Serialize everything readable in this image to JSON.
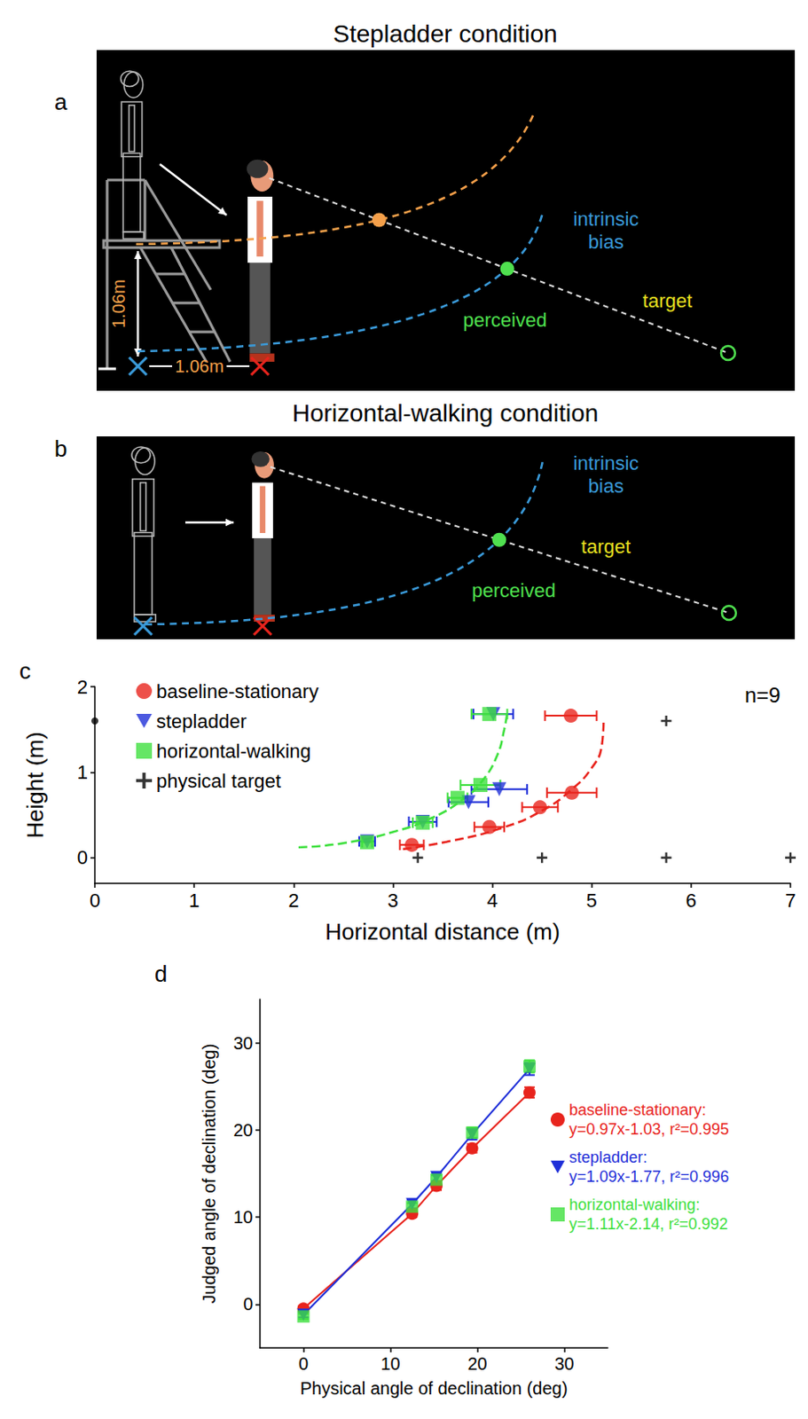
{
  "diagrams": {
    "a": {
      "letter": "a",
      "title": "Stepladder condition",
      "height_label": "1.06m",
      "distance_label": "1.06m",
      "curve_label": "intrinsic bias",
      "perceived_label": "perceived",
      "target_label": "target"
    },
    "b": {
      "letter": "b",
      "title": "Horizontal-walking condition",
      "curve_label": "intrinsic bias",
      "perceived_label": "perceived",
      "target_label": "target"
    }
  },
  "chart_data": [
    {
      "letter": "c",
      "type": "scatter",
      "x_label": "Horizontal distance (m)",
      "y_label": "Height (m)",
      "xlim": [
        0,
        7
      ],
      "xticks": [
        0,
        1,
        2,
        3,
        4,
        5,
        6,
        7
      ],
      "ylim": [
        -0.3,
        2
      ],
      "yticks": [
        0,
        1,
        2
      ],
      "grid": false,
      "legend": "upper left",
      "annotation": "n=9",
      "series": [
        {
          "name": "baseline-stationary",
          "color": "#e8241d",
          "marker": "circle",
          "x": [
            3.19,
            3.97,
            4.48,
            4.8,
            4.79
          ],
          "values": [
            0.15,
            0.36,
            0.59,
            0.76,
            1.66
          ],
          "x_err": [
            0.12,
            0.15,
            0.18,
            0.25,
            0.26
          ]
        },
        {
          "name": "stepladder",
          "color": "#1f2fd8",
          "marker": "triangle_down",
          "x": [
            2.74,
            3.3,
            3.76,
            4.07,
            4.01
          ],
          "values": [
            0.19,
            0.42,
            0.65,
            0.8,
            1.68
          ],
          "x_err": [
            0.08,
            0.14,
            0.2,
            0.28,
            0.2
          ]
        },
        {
          "name": "horizontal-walking",
          "color": "#3ee03e",
          "marker": "square",
          "x": [
            2.74,
            3.3,
            3.65,
            3.88,
            3.97
          ],
          "values": [
            0.18,
            0.41,
            0.7,
            0.85,
            1.68
          ],
          "x_err": [
            0.05,
            0.1,
            0.1,
            0.2,
            0.18
          ]
        },
        {
          "name": "physical target",
          "color": "#000000",
          "marker": "plus",
          "x": [
            3.25,
            4.5,
            5.75,
            7,
            5.75
          ],
          "values": [
            0,
            0,
            0,
            0,
            1.6
          ]
        }
      ],
      "eye": {
        "x": 0,
        "y": 1.6,
        "color": "#000000"
      },
      "curves": [
        {
          "color": "#e8241d",
          "line_style": "dashed",
          "x": [
            3.1,
            3.6,
            4.1,
            4.5,
            4.8,
            5.0,
            5.1,
            5.12
          ],
          "values": [
            0.1,
            0.2,
            0.35,
            0.55,
            0.8,
            1.05,
            1.3,
            1.6
          ]
        },
        {
          "color": "#3ee03e",
          "line_style": "dashed",
          "x": [
            2.05,
            2.5,
            3.0,
            3.4,
            3.7,
            3.9,
            4.05,
            4.12,
            4.15
          ],
          "values": [
            0.12,
            0.17,
            0.3,
            0.47,
            0.68,
            0.9,
            1.2,
            1.5,
            1.7
          ]
        }
      ]
    },
    {
      "letter": "d",
      "type": "line",
      "x_label": "Physical angle of declination (deg)",
      "y_label": "Judged angle of declination (deg)",
      "xlim": [
        -5,
        35
      ],
      "xticks": [
        0,
        10,
        20,
        30
      ],
      "ylim": [
        -5,
        35
      ],
      "yticks": [
        0,
        10,
        20,
        30
      ],
      "grid": false,
      "legend": "right",
      "series": [
        {
          "name": "baseline-stationary:",
          "fit": "y=0.97x-1.03, r²=0.995",
          "type": "line",
          "line_style": "solid",
          "color": "#e8241d",
          "marker": "circle",
          "x": [
            0,
            12.5,
            15.3,
            19.4,
            26.0
          ],
          "values": [
            -0.5,
            10.4,
            13.6,
            17.9,
            24.3
          ],
          "y_err": [
            0.3,
            0.4,
            0.5,
            0.5,
            0.6
          ]
        },
        {
          "name": "stepladder:",
          "fit": "y=1.09x-1.77, r²=0.996",
          "type": "line",
          "line_style": "solid",
          "color": "#1f2fd8",
          "marker": "triangle_down",
          "x": [
            0,
            12.5,
            15.3,
            19.4,
            26.0
          ],
          "values": [
            -1.2,
            11.5,
            14.6,
            19.5,
            27.0
          ],
          "y_err": [
            0.3,
            0.5,
            0.5,
            0.6,
            0.7
          ]
        },
        {
          "name": "horizontal-walking:",
          "fit": "y=1.11x-2.14, r²=0.992",
          "type": "scatter",
          "color": "#3ee03e",
          "marker": "square",
          "x": [
            0,
            12.5,
            15.3,
            19.4,
            26.0
          ],
          "values": [
            -1.4,
            11.2,
            14.3,
            19.7,
            27.3
          ],
          "y_err": [
            0.3,
            0.4,
            0.5,
            0.6,
            0.7
          ]
        }
      ]
    }
  ]
}
